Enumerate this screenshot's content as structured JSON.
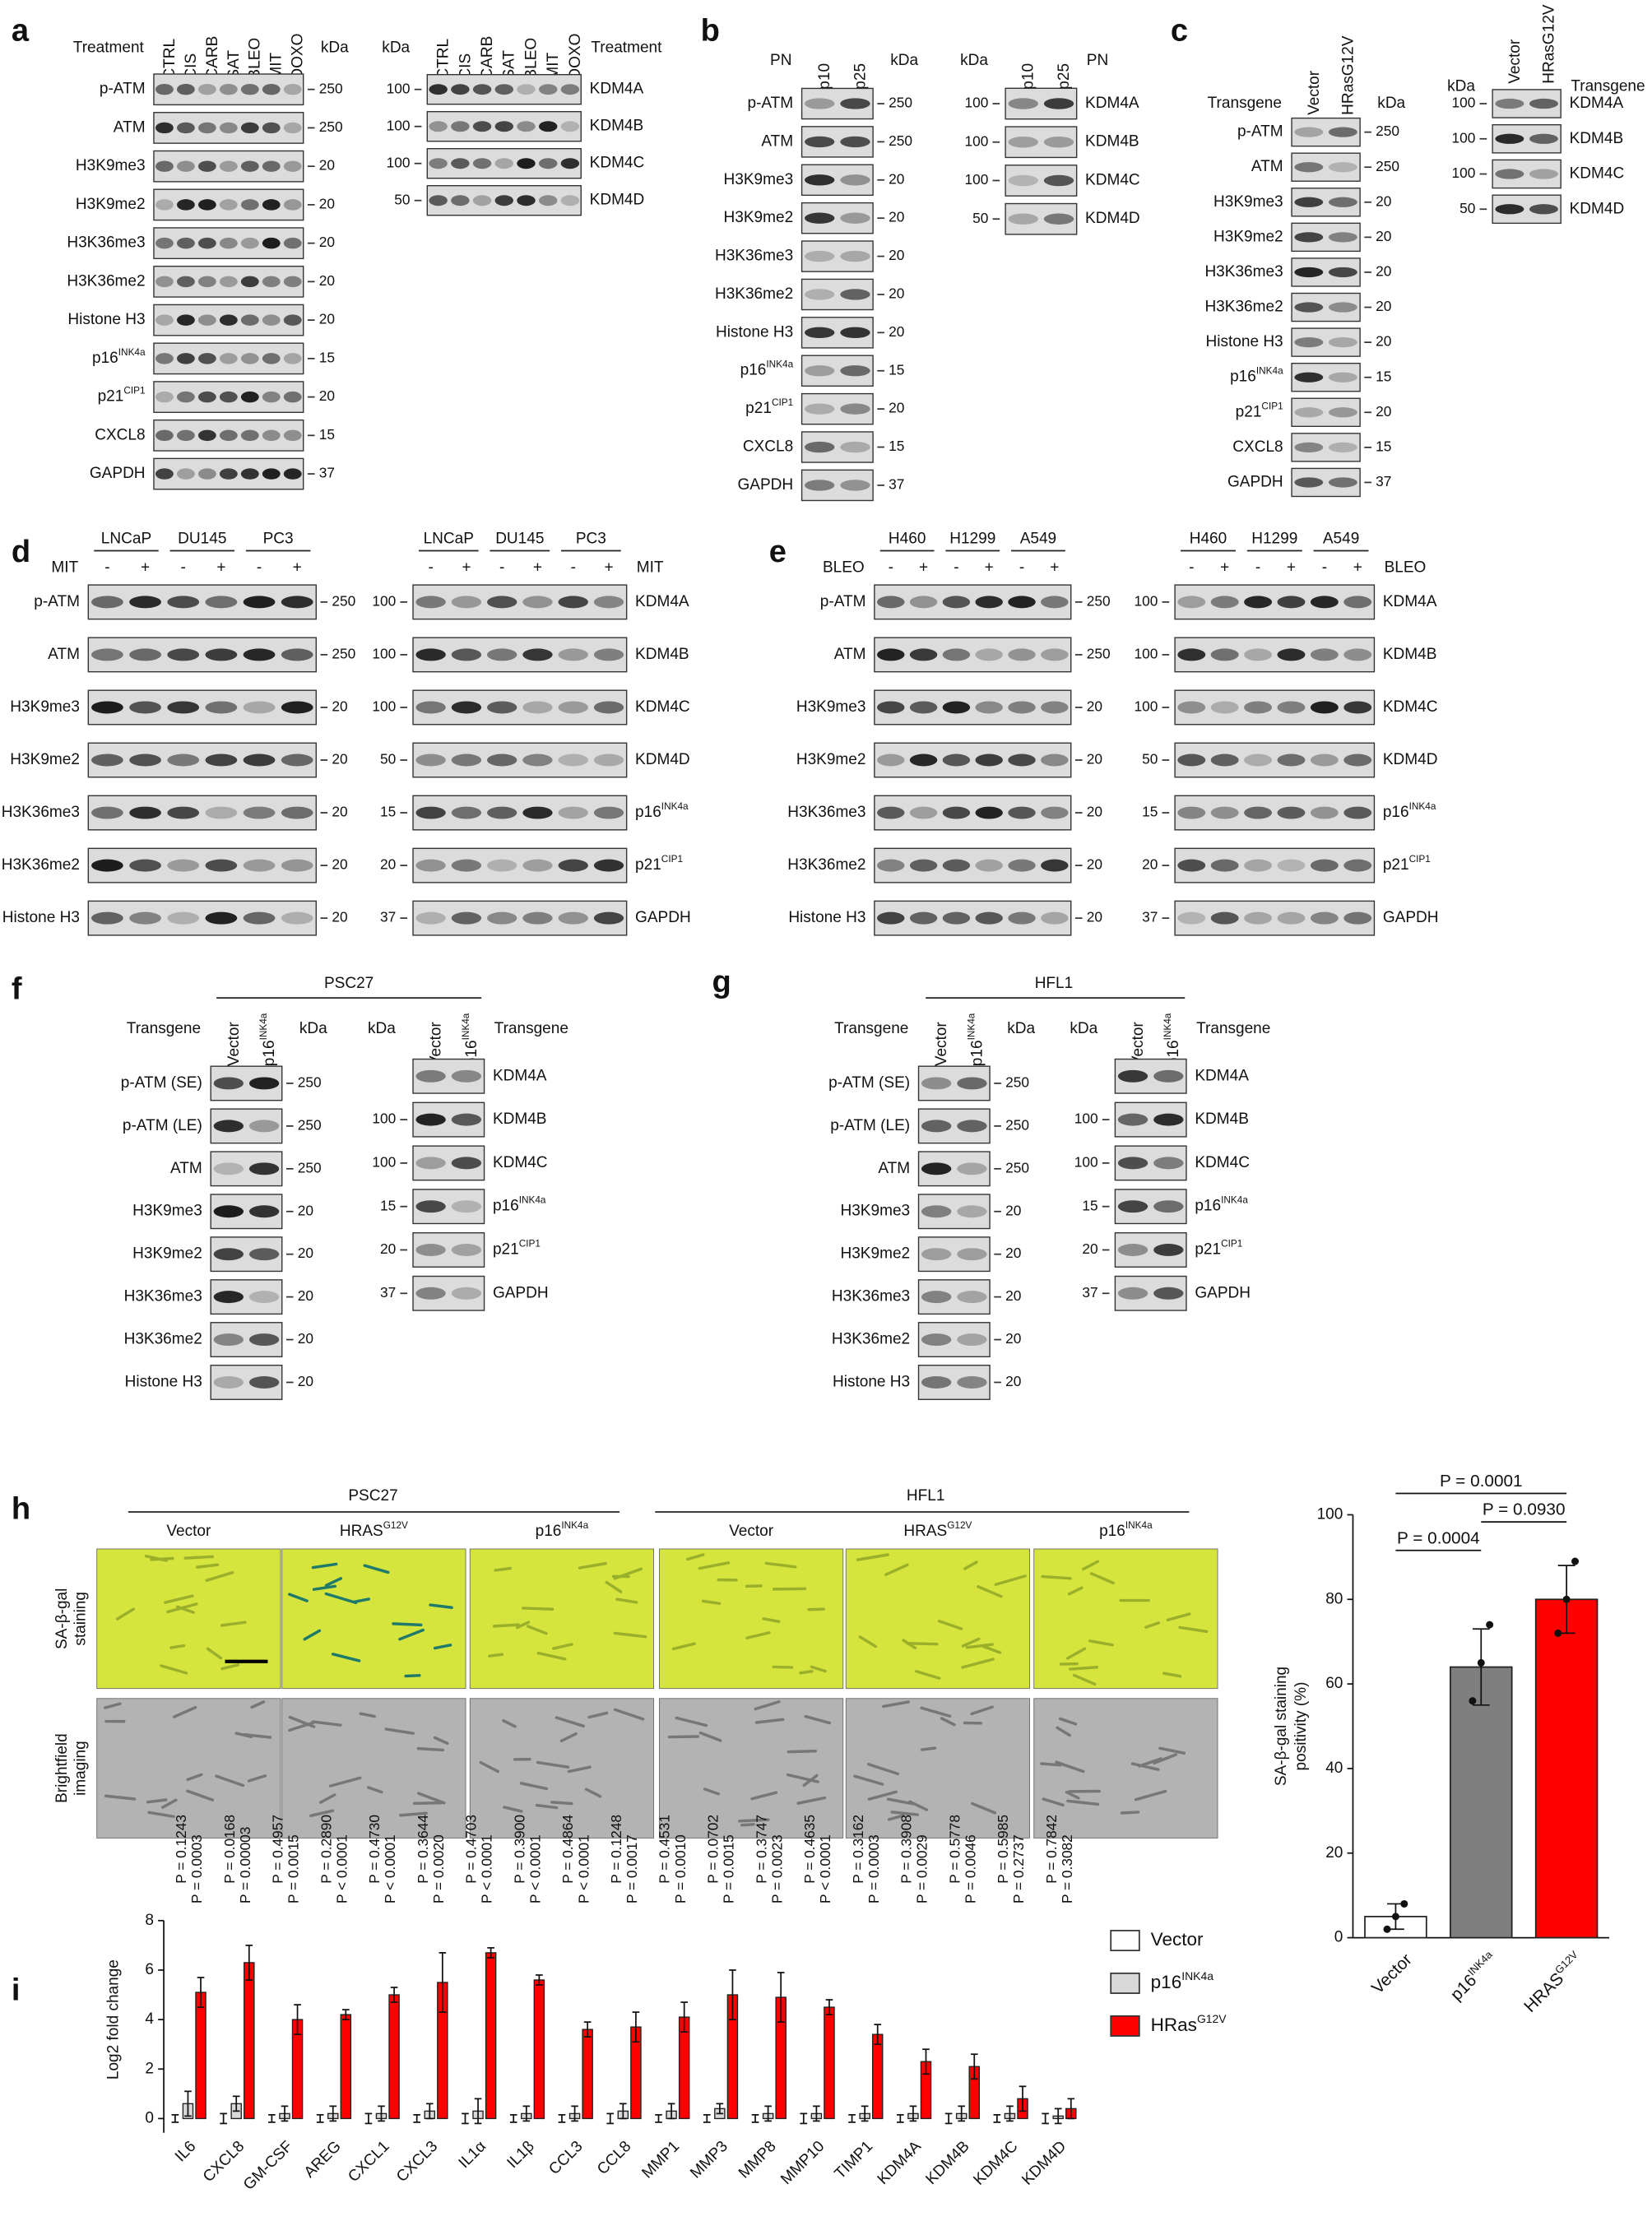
{
  "panels": [
    {
      "label": "a",
      "blots": [
        {
          "header": "Treatment",
          "kda_label": "kDa",
          "lanes": [
            "CTRL",
            "CIS",
            "CARB",
            "SAT",
            "BLEO",
            "MIT",
            "DOXO"
          ],
          "rows": [
            {
              "name": "p-ATM",
              "kda": 250
            },
            {
              "name": "ATM",
              "kda": 250
            },
            {
              "name": "H3K9me3",
              "kda": 20
            },
            {
              "name": "H3K9me2",
              "kda": 20
            },
            {
              "name": "H3K36me3",
              "kda": 20
            },
            {
              "name": "H3K36me2",
              "kda": 20
            },
            {
              "name": "Histone H3",
              "kda": 20
            },
            {
              "name": "p16",
              "sup": "INK4a",
              "kda": 15
            },
            {
              "name": "p21",
              "sup": "CIP1",
              "kda": 20
            },
            {
              "name": "CXCL8",
              "kda": 15
            },
            {
              "name": "GAPDH",
              "kda": 37
            }
          ]
        },
        {
          "header": "Treatment",
          "kda_label": "kDa",
          "lanes": [
            "CTRL",
            "CIS",
            "CARB",
            "SAT",
            "BLEO",
            "MIT",
            "DOXO"
          ],
          "rows": [
            {
              "name": "KDM4A",
              "kda": 100
            },
            {
              "name": "KDM4B",
              "kda": 100
            },
            {
              "name": "KDM4C",
              "kda": 100
            },
            {
              "name": "KDM4D",
              "kda": 50
            }
          ]
        }
      ]
    },
    {
      "label": "b",
      "blots": [
        {
          "header": "PN",
          "kda_label": "kDa",
          "lanes": [
            "p10",
            "p25"
          ],
          "rows": [
            {
              "name": "p-ATM",
              "kda": 250
            },
            {
              "name": "ATM",
              "kda": 250
            },
            {
              "name": "H3K9me3",
              "kda": 20
            },
            {
              "name": "H3K9me2",
              "kda": 20
            },
            {
              "name": "H3K36me3",
              "kda": 20
            },
            {
              "name": "H3K36me2",
              "kda": 20
            },
            {
              "name": "Histone H3",
              "kda": 20
            },
            {
              "name": "p16",
              "sup": "INK4a",
              "kda": 15
            },
            {
              "name": "p21",
              "sup": "CIP1",
              "kda": 20
            },
            {
              "name": "CXCL8",
              "kda": 15
            },
            {
              "name": "GAPDH",
              "kda": 37
            }
          ]
        },
        {
          "header": "PN",
          "kda_label": "kDa",
          "lanes": [
            "p10",
            "p25"
          ],
          "rows": [
            {
              "name": "KDM4A",
              "kda": 100
            },
            {
              "name": "KDM4B",
              "kda": 100
            },
            {
              "name": "KDM4C",
              "kda": 100
            },
            {
              "name": "KDM4D",
              "kda": 50
            }
          ]
        }
      ]
    },
    {
      "label": "c",
      "blots": [
        {
          "header": "Transgene",
          "kda_label": "kDa",
          "lanes": [
            "Vector",
            "HRasG12V"
          ],
          "rows": [
            {
              "name": "p-ATM",
              "kda": 250
            },
            {
              "name": "ATM",
              "kda": 250
            },
            {
              "name": "H3K9me3",
              "kda": 20
            },
            {
              "name": "H3K9me2",
              "kda": 20
            },
            {
              "name": "H3K36me3",
              "kda": 20
            },
            {
              "name": "H3K36me2",
              "kda": 20
            },
            {
              "name": "Histone H3",
              "kda": 20
            },
            {
              "name": "p16",
              "sup": "INK4a",
              "kda": 15
            },
            {
              "name": "p21",
              "sup": "CIP1",
              "kda": 20
            },
            {
              "name": "CXCL8",
              "kda": 15
            },
            {
              "name": "GAPDH",
              "kda": 37
            }
          ]
        },
        {
          "header": "Transgene",
          "kda_label": "kDa",
          "lanes": [
            "Vector",
            "HRasG12V"
          ],
          "rows": [
            {
              "name": "KDM4A",
              "kda": 100
            },
            {
              "name": "KDM4B",
              "kda": 100
            },
            {
              "name": "KDM4C",
              "kda": 100
            },
            {
              "name": "KDM4D",
              "kda": 50
            }
          ]
        }
      ]
    },
    {
      "label": "d",
      "blots": [
        {
          "groups": [
            "LNCaP",
            "DU145",
            "PC3"
          ],
          "header": "MIT",
          "lanes": [
            "-",
            "+",
            "-",
            "+",
            "-",
            "+"
          ],
          "rows": [
            {
              "name": "p-ATM",
              "kda": 250
            },
            {
              "name": "ATM",
              "kda": 250
            },
            {
              "name": "H3K9me3",
              "kda": 20
            },
            {
              "name": "H3K9me2",
              "kda": 20
            },
            {
              "name": "H3K36me3",
              "kda": 20
            },
            {
              "name": "H3K36me2",
              "kda": 20
            },
            {
              "name": "Histone H3",
              "kda": 20
            }
          ]
        },
        {
          "groups": [
            "LNCaP",
            "DU145",
            "PC3"
          ],
          "header": "MIT",
          "lanes": [
            "-",
            "+",
            "-",
            "+",
            "-",
            "+"
          ],
          "rows": [
            {
              "name": "KDM4A",
              "kda": 100
            },
            {
              "name": "KDM4B",
              "kda": 100
            },
            {
              "name": "KDM4C",
              "kda": 100
            },
            {
              "name": "KDM4D",
              "kda": 50
            },
            {
              "name": "p16",
              "sup": "INK4a",
              "kda": 15
            },
            {
              "name": "p21",
              "sup": "CIP1",
              "kda": 20
            },
            {
              "name": "GAPDH",
              "kda": 37
            }
          ]
        }
      ]
    },
    {
      "label": "e",
      "blots": [
        {
          "groups": [
            "H460",
            "H1299",
            "A549"
          ],
          "header": "BLEO",
          "lanes": [
            "-",
            "+",
            "-",
            "+",
            "-",
            "+"
          ],
          "rows": [
            {
              "name": "p-ATM",
              "kda": 250
            },
            {
              "name": "ATM",
              "kda": 250
            },
            {
              "name": "H3K9me3",
              "kda": 20
            },
            {
              "name": "H3K9me2",
              "kda": 20
            },
            {
              "name": "H3K36me3",
              "kda": 20
            },
            {
              "name": "H3K36me2",
              "kda": 20
            },
            {
              "name": "Histone H3",
              "kda": 20
            }
          ]
        },
        {
          "groups": [
            "H460",
            "H1299",
            "A549"
          ],
          "header": "BLEO",
          "lanes": [
            "-",
            "+",
            "-",
            "+",
            "-",
            "+"
          ],
          "rows": [
            {
              "name": "KDM4A",
              "kda": 100
            },
            {
              "name": "KDM4B",
              "kda": 100
            },
            {
              "name": "KDM4C",
              "kda": 100
            },
            {
              "name": "KDM4D",
              "kda": 50
            },
            {
              "name": "p16",
              "sup": "INK4a",
              "kda": 15
            },
            {
              "name": "p21",
              "sup": "CIP1",
              "kda": 20
            },
            {
              "name": "GAPDH",
              "kda": 37
            }
          ]
        }
      ]
    },
    {
      "label": "f",
      "title": "PSC27",
      "blots": [
        {
          "header": "Transgene",
          "kda_label": "kDa",
          "lanes": [
            "Vector",
            {
              "text": "p16",
              "sup": "INK4a"
            }
          ],
          "rows": [
            {
              "name": "p-ATM (SE)",
              "kda": 250
            },
            {
              "name": "p-ATM (LE)",
              "kda": 250
            },
            {
              "name": "ATM",
              "kda": 250
            },
            {
              "name": "H3K9me3",
              "kda": 20
            },
            {
              "name": "H3K9me2",
              "kda": 20
            },
            {
              "name": "H3K36me3",
              "kda": 20
            },
            {
              "name": "H3K36me2",
              "kda": 20
            },
            {
              "name": "Histone H3",
              "kda": 20
            }
          ]
        },
        {
          "header": "Transgene",
          "kda_label": "kDa",
          "lanes": [
            "Vector",
            {
              "text": "p16",
              "sup": "INK4a"
            }
          ],
          "rows": [
            {
              "name": "KDM4A"
            },
            {
              "name": "KDM4B",
              "kda": 100
            },
            {
              "name": "KDM4C",
              "kda": 100
            },
            {
              "name": "p16",
              "sup": "INK4a",
              "kda": 15
            },
            {
              "name": "p21",
              "sup": "CIP1",
              "kda": 20
            },
            {
              "name": "GAPDH",
              "kda": 37
            }
          ]
        }
      ]
    },
    {
      "label": "g",
      "title": "HFL1",
      "blots": [
        {
          "header": "Transgene",
          "kda_label": "kDa",
          "lanes": [
            "Vector",
            {
              "text": "p16",
              "sup": "INK4a"
            }
          ],
          "rows": [
            {
              "name": "p-ATM (SE)",
              "kda": 250
            },
            {
              "name": "p-ATM (LE)",
              "kda": 250
            },
            {
              "name": "ATM",
              "kda": 250
            },
            {
              "name": "H3K9me3",
              "kda": 20
            },
            {
              "name": "H3K9me2",
              "kda": 20
            },
            {
              "name": "H3K36me3",
              "kda": 20
            },
            {
              "name": "H3K36me2",
              "kda": 20
            },
            {
              "name": "Histone H3",
              "kda": 20
            }
          ]
        },
        {
          "header": "Transgene",
          "kda_label": "kDa",
          "lanes": [
            "Vector",
            {
              "text": "p16",
              "sup": "INK4a"
            }
          ],
          "rows": [
            {
              "name": "KDM4A"
            },
            {
              "name": "KDM4B",
              "kda": 100
            },
            {
              "name": "KDM4C",
              "kda": 100
            },
            {
              "name": "p16",
              "sup": "INK4a",
              "kda": 15
            },
            {
              "name": "p21",
              "sup": "CIP1",
              "kda": 20
            },
            {
              "name": "GAPDH",
              "kda": 37
            }
          ]
        }
      ]
    }
  ],
  "imaging": {
    "label": "h",
    "groups": [
      {
        "title": "PSC27",
        "columns": [
          {
            "text": "Vector"
          },
          {
            "text": "HRAS",
            "sup": "G12V"
          },
          {
            "text": "p16",
            "sup": "INK4a"
          }
        ]
      },
      {
        "title": "HFL1",
        "columns": [
          {
            "text": "Vector"
          },
          {
            "text": "HRAS",
            "sup": "G12V"
          },
          {
            "text": "p16",
            "sup": "INK4a"
          }
        ]
      }
    ],
    "row_labels": [
      [
        "SA-β-gal",
        "staining"
      ],
      [
        "Brightfield",
        "imaging"
      ]
    ]
  },
  "chart_data": [
    {
      "type": "bar",
      "ylabel": [
        "SA-β-gal staining",
        "positivity (%)"
      ],
      "categories": [
        "Vector",
        "p16",
        "HRAS"
      ],
      "category_sup": [
        null,
        "INK4a",
        "G12V"
      ],
      "values": [
        5,
        64,
        80
      ],
      "errors": [
        3,
        9,
        8
      ],
      "points": [
        [
          2,
          5,
          8
        ],
        [
          56,
          65,
          74
        ],
        [
          72,
          80,
          89
        ]
      ],
      "colors": [
        "#ffffff",
        "#7f7f7f",
        "#ff0000"
      ],
      "ylim": [
        0,
        100
      ],
      "yticks": [
        0,
        20,
        40,
        60,
        80,
        100
      ],
      "comparisons": [
        {
          "pair": [
            0,
            2
          ],
          "label": "P = 0.0001"
        },
        {
          "pair": [
            1,
            2
          ],
          "label": "P = 0.0930"
        },
        {
          "pair": [
            0,
            1
          ],
          "label": "P = 0.0004"
        }
      ]
    },
    {
      "type": "bar",
      "panel_label": "i",
      "ylabel": [
        "Log2 fold change"
      ],
      "categories": [
        "IL6",
        "CXCL8",
        "GM-CSF",
        "AREG",
        "CXCL1",
        "CXCL3",
        "IL1α",
        "IL1β",
        "CCL3",
        "CCL8",
        "MMP1",
        "MMP3",
        "MMP8",
        "MMP10",
        "TIMP1",
        "KDM4A",
        "KDM4B",
        "KDM4C",
        "KDM4D"
      ],
      "series": [
        {
          "name": "Vector",
          "color": "#ffffff",
          "values": [
            0,
            0,
            0,
            0,
            0,
            0,
            0,
            0,
            0,
            0,
            0,
            0,
            0,
            0,
            0,
            0,
            0,
            0,
            0
          ],
          "errors": [
            0.15,
            0.2,
            0.15,
            0.15,
            0.2,
            0.15,
            0.2,
            0.15,
            0.15,
            0.2,
            0.15,
            0.15,
            0.15,
            0.2,
            0.15,
            0.15,
            0.2,
            0.15,
            0.2
          ]
        },
        {
          "name": "p16",
          "name_sup": "INK4a",
          "color": "#d9d9d9",
          "values": [
            0.6,
            0.6,
            0.2,
            0.2,
            0.2,
            0.3,
            0.3,
            0.2,
            0.2,
            0.3,
            0.3,
            0.4,
            0.2,
            0.2,
            0.2,
            0.2,
            0.2,
            0.2,
            0.1
          ],
          "errors": [
            0.5,
            0.3,
            0.3,
            0.3,
            0.3,
            0.3,
            0.5,
            0.3,
            0.3,
            0.3,
            0.3,
            0.2,
            0.3,
            0.3,
            0.3,
            0.3,
            0.3,
            0.3,
            0.3
          ]
        },
        {
          "name": "HRas",
          "name_sup": "G12V",
          "color": "#ff0000",
          "values": [
            5.1,
            6.3,
            4.0,
            4.2,
            5.0,
            5.5,
            6.7,
            5.6,
            3.6,
            3.7,
            4.1,
            5.0,
            4.9,
            4.5,
            3.4,
            2.3,
            2.1,
            0.8,
            0.4
          ],
          "errors": [
            0.6,
            0.7,
            0.6,
            0.2,
            0.3,
            1.2,
            0.2,
            0.2,
            0.3,
            0.6,
            0.6,
            1.0,
            1.0,
            0.3,
            0.4,
            0.5,
            0.5,
            0.5,
            0.4
          ]
        }
      ],
      "ylim": [
        0,
        8
      ],
      "yticks": [
        0,
        2,
        4,
        6,
        8
      ],
      "annotations": [
        [
          "P = 0.1243",
          "P = 0.0003"
        ],
        [
          "P = 0.0168",
          "P = 0.00003"
        ],
        [
          "P = 0.4957",
          "P = 0.0015"
        ],
        [
          "P = 0.2890",
          "P < 0.0001"
        ],
        [
          "P = 0.4730",
          "P < 0.0001"
        ],
        [
          "P = 0.3644",
          "P = 0.0020"
        ],
        [
          "P = 0.4703",
          "P < 0.0001"
        ],
        [
          "P = 0.3900",
          "P < 0.0001"
        ],
        [
          "P = 0.4864",
          "P < 0.0001"
        ],
        [
          "P = 0.1248",
          "P = 0.0017"
        ],
        [
          "P = 0.4531",
          "P = 0.0010"
        ],
        [
          "P = 0.0702",
          "P = 0.0015"
        ],
        [
          "P = 0.3747",
          "P = 0.0023"
        ],
        [
          "P = 0.4635",
          "P < 0.0001"
        ],
        [
          "P = 0.3162",
          "P = 0.0003"
        ],
        [
          "P = 0.3908",
          "P = 0.0029"
        ],
        [
          "P = 0.5778",
          "P = 0.0046"
        ],
        [
          "P = 0.5985",
          "P = 0.2737"
        ],
        [
          "P = 0.7842",
          "P = 0.3082"
        ]
      ]
    }
  ]
}
